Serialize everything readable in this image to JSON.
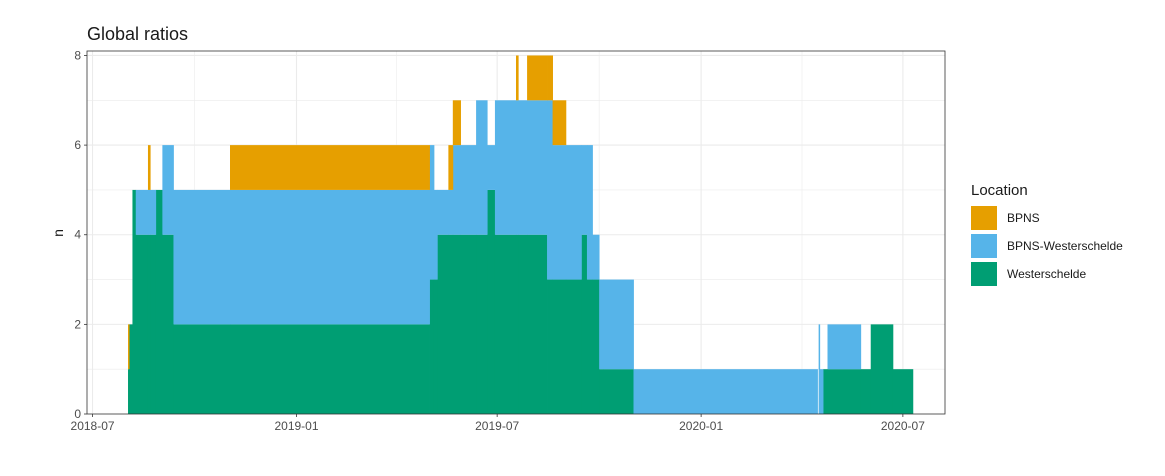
{
  "chart_data": {
    "type": "area",
    "title": "Global ratios",
    "xlabel": "",
    "ylabel": "n",
    "xlim": [
      "2018-06-26",
      "2020-08-08"
    ],
    "ylim": [
      0,
      8.1
    ],
    "y_ticks": [
      0,
      2,
      4,
      6,
      8
    ],
    "x_ticks": [
      "2018-07-01",
      "2019-01-01",
      "2019-07-01",
      "2020-01-01",
      "2020-07-01"
    ],
    "x_tick_labels": [
      "2018-07",
      "2019-01",
      "2019-07",
      "2020-01",
      "2020-07"
    ],
    "stacked": true,
    "step": true,
    "grid": true,
    "legend": {
      "title": "Location",
      "position": "right",
      "entries": [
        "BPNS",
        "BPNS-Westerschelde",
        "Westerschelde"
      ]
    },
    "series": [
      {
        "name": "Westerschelde",
        "color": "#009E73",
        "steps": [
          [
            "2018-08-02",
            1
          ],
          [
            "2018-08-03",
            2
          ],
          [
            "2018-08-06",
            5
          ],
          [
            "2018-08-09",
            4
          ],
          [
            "2018-08-27",
            5
          ],
          [
            "2018-09-02",
            4
          ],
          [
            "2018-09-12",
            2
          ],
          [
            "2019-05-01",
            3
          ],
          [
            "2019-05-08",
            4
          ],
          [
            "2019-06-22",
            5
          ],
          [
            "2019-06-29",
            4
          ],
          [
            "2019-08-15",
            3
          ],
          [
            "2019-09-15",
            4
          ],
          [
            "2019-09-20",
            3
          ],
          [
            "2019-10-01",
            1
          ],
          [
            "2019-11-01",
            0
          ],
          [
            "2020-04-20",
            1
          ],
          [
            "2020-06-02",
            2
          ],
          [
            "2020-06-22",
            1
          ],
          [
            "2020-07-10",
            0
          ]
        ]
      },
      {
        "name": "BPNS-Westerschelde",
        "color": "#56B4E9",
        "steps": [
          [
            "2018-08-02",
            0
          ],
          [
            "2018-08-09",
            1
          ],
          [
            "2018-08-27",
            0
          ],
          [
            "2018-09-02",
            2
          ],
          [
            "2018-09-12",
            3
          ],
          [
            "2019-05-05",
            2
          ],
          [
            "2019-05-08",
            1
          ],
          [
            "2019-05-22",
            2
          ],
          [
            "2019-06-12",
            3
          ],
          [
            "2019-06-22",
            1
          ],
          [
            "2019-06-29",
            3
          ],
          [
            "2019-08-15",
            4
          ],
          [
            "2019-08-20",
            3
          ],
          [
            "2019-09-15",
            2
          ],
          [
            "2019-09-20",
            3
          ],
          [
            "2019-09-25",
            1
          ],
          [
            "2019-10-01",
            2
          ],
          [
            "2019-10-05",
            1
          ],
          [
            "2019-10-05",
            2
          ],
          [
            "2019-11-01",
            1
          ],
          [
            "2020-04-15",
            0
          ],
          [
            "2020-04-16",
            2
          ],
          [
            "2020-04-17",
            1
          ],
          [
            "2020-04-20",
            0
          ],
          [
            "2020-04-24",
            1
          ],
          [
            "2020-05-24",
            0
          ]
        ]
      },
      {
        "name": "BPNS",
        "color": "#E69F00",
        "steps": [
          [
            "2018-08-02",
            1
          ],
          [
            "2018-08-03",
            0
          ],
          [
            "2018-08-20",
            1
          ],
          [
            "2018-08-22",
            0
          ],
          [
            "2018-11-02",
            1
          ],
          [
            "2019-05-01",
            0
          ],
          [
            "2019-05-18",
            1
          ],
          [
            "2019-05-29",
            0
          ],
          [
            "2019-07-18",
            1
          ],
          [
            "2019-07-20",
            0
          ],
          [
            "2019-07-28",
            1
          ],
          [
            "2019-09-01",
            0
          ]
        ]
      }
    ]
  }
}
